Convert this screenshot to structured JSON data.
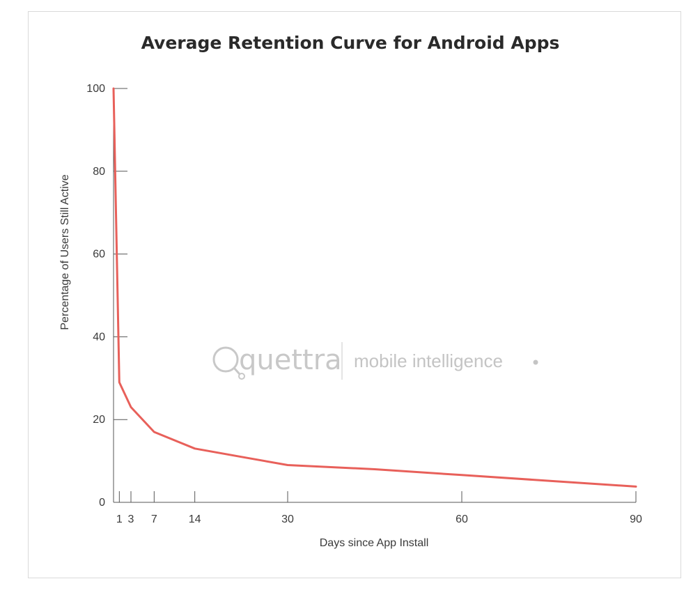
{
  "chart_data": {
    "type": "line",
    "title": "Average Retention Curve for Android Apps",
    "xlabel": "Days since App Install",
    "ylabel": "Percentage of Users Still Active",
    "xlim": [
      0,
      90
    ],
    "ylim": [
      0,
      100
    ],
    "xticks": [
      1,
      3,
      7,
      14,
      30,
      60,
      90
    ],
    "yticks": [
      0,
      20,
      40,
      60,
      80,
      100
    ],
    "grid": false,
    "series": [
      {
        "name": "Average Retention",
        "color": "#e8605a",
        "x": [
          0,
          1,
          3,
          7,
          14,
          22,
          30,
          45,
          60,
          75,
          90
        ],
        "y": [
          100,
          29,
          23,
          17,
          13,
          11,
          9,
          8,
          6.6,
          5.2,
          3.8
        ]
      }
    ]
  },
  "watermark": {
    "brand": "quettra",
    "tagline": "mobile intelligence",
    "dot": ".",
    "brand_color": "#c8c8c8",
    "accent_color": "#e8605a"
  }
}
